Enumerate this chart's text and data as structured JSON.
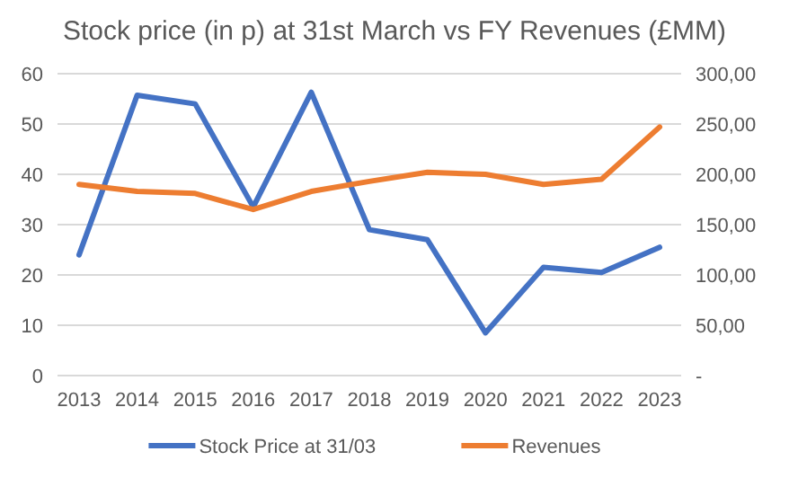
{
  "chart_data": {
    "type": "line",
    "title": "Stock price (in p) at 31st March vs FY Revenues (£MM)",
    "categories": [
      "2013",
      "2014",
      "2015",
      "2016",
      "2017",
      "2018",
      "2019",
      "2020",
      "2021",
      "2022",
      "2023"
    ],
    "series": [
      {
        "name": "Stock Price at 31/03",
        "color": "#4472c4",
        "values": [
          24,
          55.7,
          54,
          33.5,
          56.3,
          29,
          27,
          8.5,
          21.5,
          20.5,
          25.5
        ]
      },
      {
        "name": "Revenues",
        "color": "#ed7d31",
        "axis": "y2",
        "values": [
          190,
          183,
          181,
          165,
          183,
          193,
          202,
          200,
          190,
          195,
          247
        ]
      }
    ],
    "ylim": [
      0,
      60
    ],
    "yticks": [
      0,
      10,
      20,
      30,
      40,
      50,
      60
    ],
    "y2lim": [
      0,
      300
    ],
    "y2ticks": [
      {
        "value": 0,
        "label": "-"
      },
      {
        "value": 50,
        "label": "50,00"
      },
      {
        "value": 100,
        "label": "100,00"
      },
      {
        "value": 150,
        "label": "150,00"
      },
      {
        "value": 200,
        "label": "200,00"
      },
      {
        "value": 250,
        "label": "250,00"
      },
      {
        "value": 300,
        "label": "300,00"
      }
    ],
    "grid": "y",
    "legend": "bottom",
    "marker": "none",
    "line_style": "solid"
  }
}
